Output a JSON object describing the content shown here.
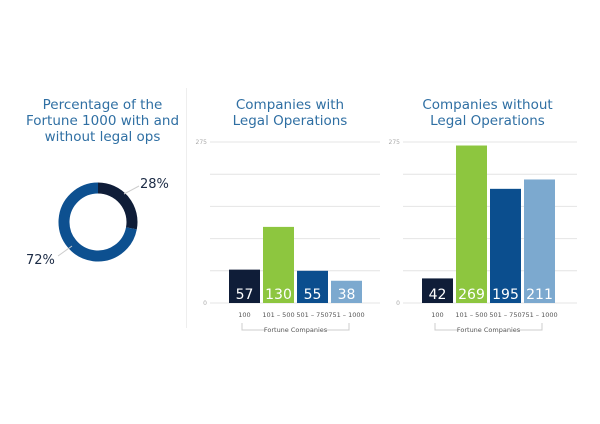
{
  "colors": {
    "title": "#2f6fa3",
    "dark": "#0f1d38",
    "green": "#8dc63f",
    "blue": "#0b4e8e",
    "light_blue": "#7ca9cf",
    "donut_main": "#0d5090"
  },
  "chart_data": [
    {
      "type": "pie",
      "donut": true,
      "title": "Percentage of the Fortune 1000 with and without legal ops",
      "title_lines": [
        "Percentage of the",
        "Fortune 1000 with and",
        "without legal ops"
      ],
      "slices": [
        {
          "value": 28,
          "label": "28%",
          "color": "#0f1d38"
        },
        {
          "value": 72,
          "label": "72%",
          "color": "#0d5090"
        }
      ]
    },
    {
      "type": "bar",
      "title": "Companies with Legal Operations",
      "title_lines": [
        "Companies with",
        "Legal Operations"
      ],
      "categories": [
        "100",
        "101 – 500",
        "501 – 750",
        "751 – 1000"
      ],
      "values": [
        57,
        130,
        55,
        38
      ],
      "data_labels": [
        "57",
        "130",
        "55",
        "38"
      ],
      "bar_colors": [
        "#0f1d38",
        "#8dc63f",
        "#0b4e8e",
        "#7ca9cf"
      ],
      "xlabel": "Fortune Companies",
      "ylim": [
        0,
        275
      ],
      "yticks": [
        "0",
        "275"
      ],
      "grid": true
    },
    {
      "type": "bar",
      "title": "Companies without Legal Operations",
      "title_lines": [
        "Companies without",
        "Legal Operations"
      ],
      "categories": [
        "100",
        "101 – 500",
        "501 – 750",
        "751 – 1000"
      ],
      "values": [
        42,
        269,
        195,
        211
      ],
      "data_labels": [
        "42",
        "269",
        "195",
        "211"
      ],
      "bar_colors": [
        "#0f1d38",
        "#8dc63f",
        "#0b4e8e",
        "#7ca9cf"
      ],
      "xlabel": "Fortune Companies",
      "ylim": [
        0,
        275
      ],
      "yticks": [
        "0",
        "275"
      ],
      "grid": true
    }
  ]
}
